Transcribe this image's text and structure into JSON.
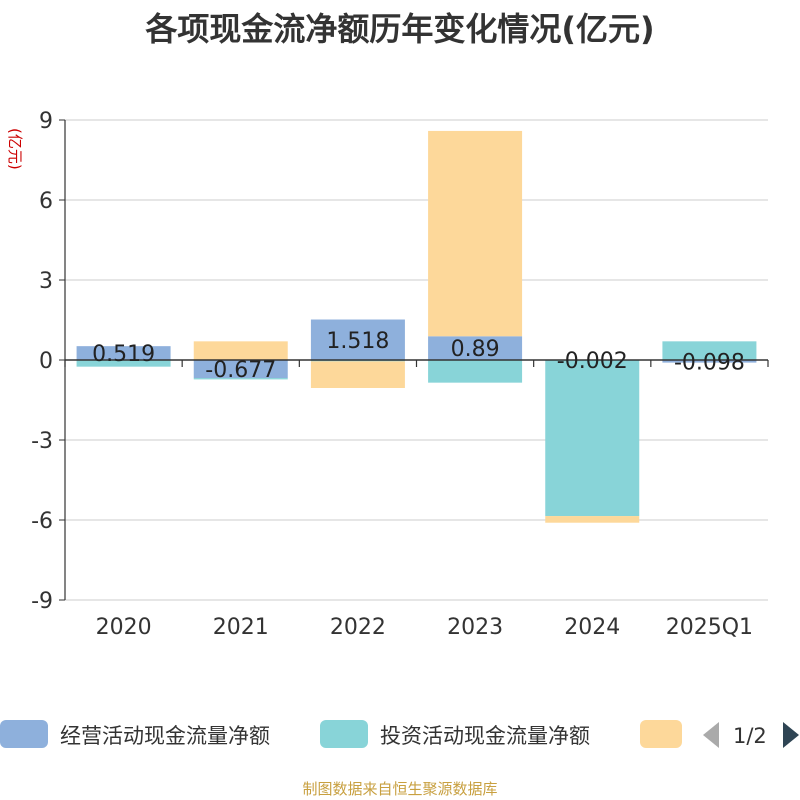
{
  "chart_data": {
    "type": "bar",
    "title": "各项现金流净额历年变化情况(亿元)",
    "y_unit": "(亿元)",
    "categories": [
      "2020",
      "2021",
      "2022",
      "2023",
      "2024",
      "2025Q1"
    ],
    "ylim": [
      -9,
      9
    ],
    "y_ticks": [
      "9",
      "6",
      "3",
      "0",
      "-3",
      "-6",
      "-9"
    ],
    "grid": true,
    "stacked": true,
    "series": [
      {
        "name": "经营活动现金流量净额",
        "color": "#8eb0dc",
        "values": [
          0.519,
          -0.677,
          1.518,
          0.89,
          -0.002,
          -0.098
        ],
        "labels": [
          "0.519",
          "-0.677",
          "1.518",
          "0.89",
          "-0.002",
          "-0.098"
        ]
      },
      {
        "name": "投资活动现金流量净额",
        "color": "#88d4d8",
        "values": [
          -0.25,
          -0.05,
          -0.05,
          -0.85,
          -5.85,
          0.7
        ]
      },
      {
        "name": "",
        "color": "#fdd89a",
        "values": [
          0.0,
          0.7,
          -1.0,
          7.7,
          -0.25,
          0.0
        ]
      }
    ],
    "legend": {
      "position": "bottom",
      "page": "1/2"
    }
  },
  "footer": {
    "source": "制图数据来自恒生聚源数据库"
  }
}
